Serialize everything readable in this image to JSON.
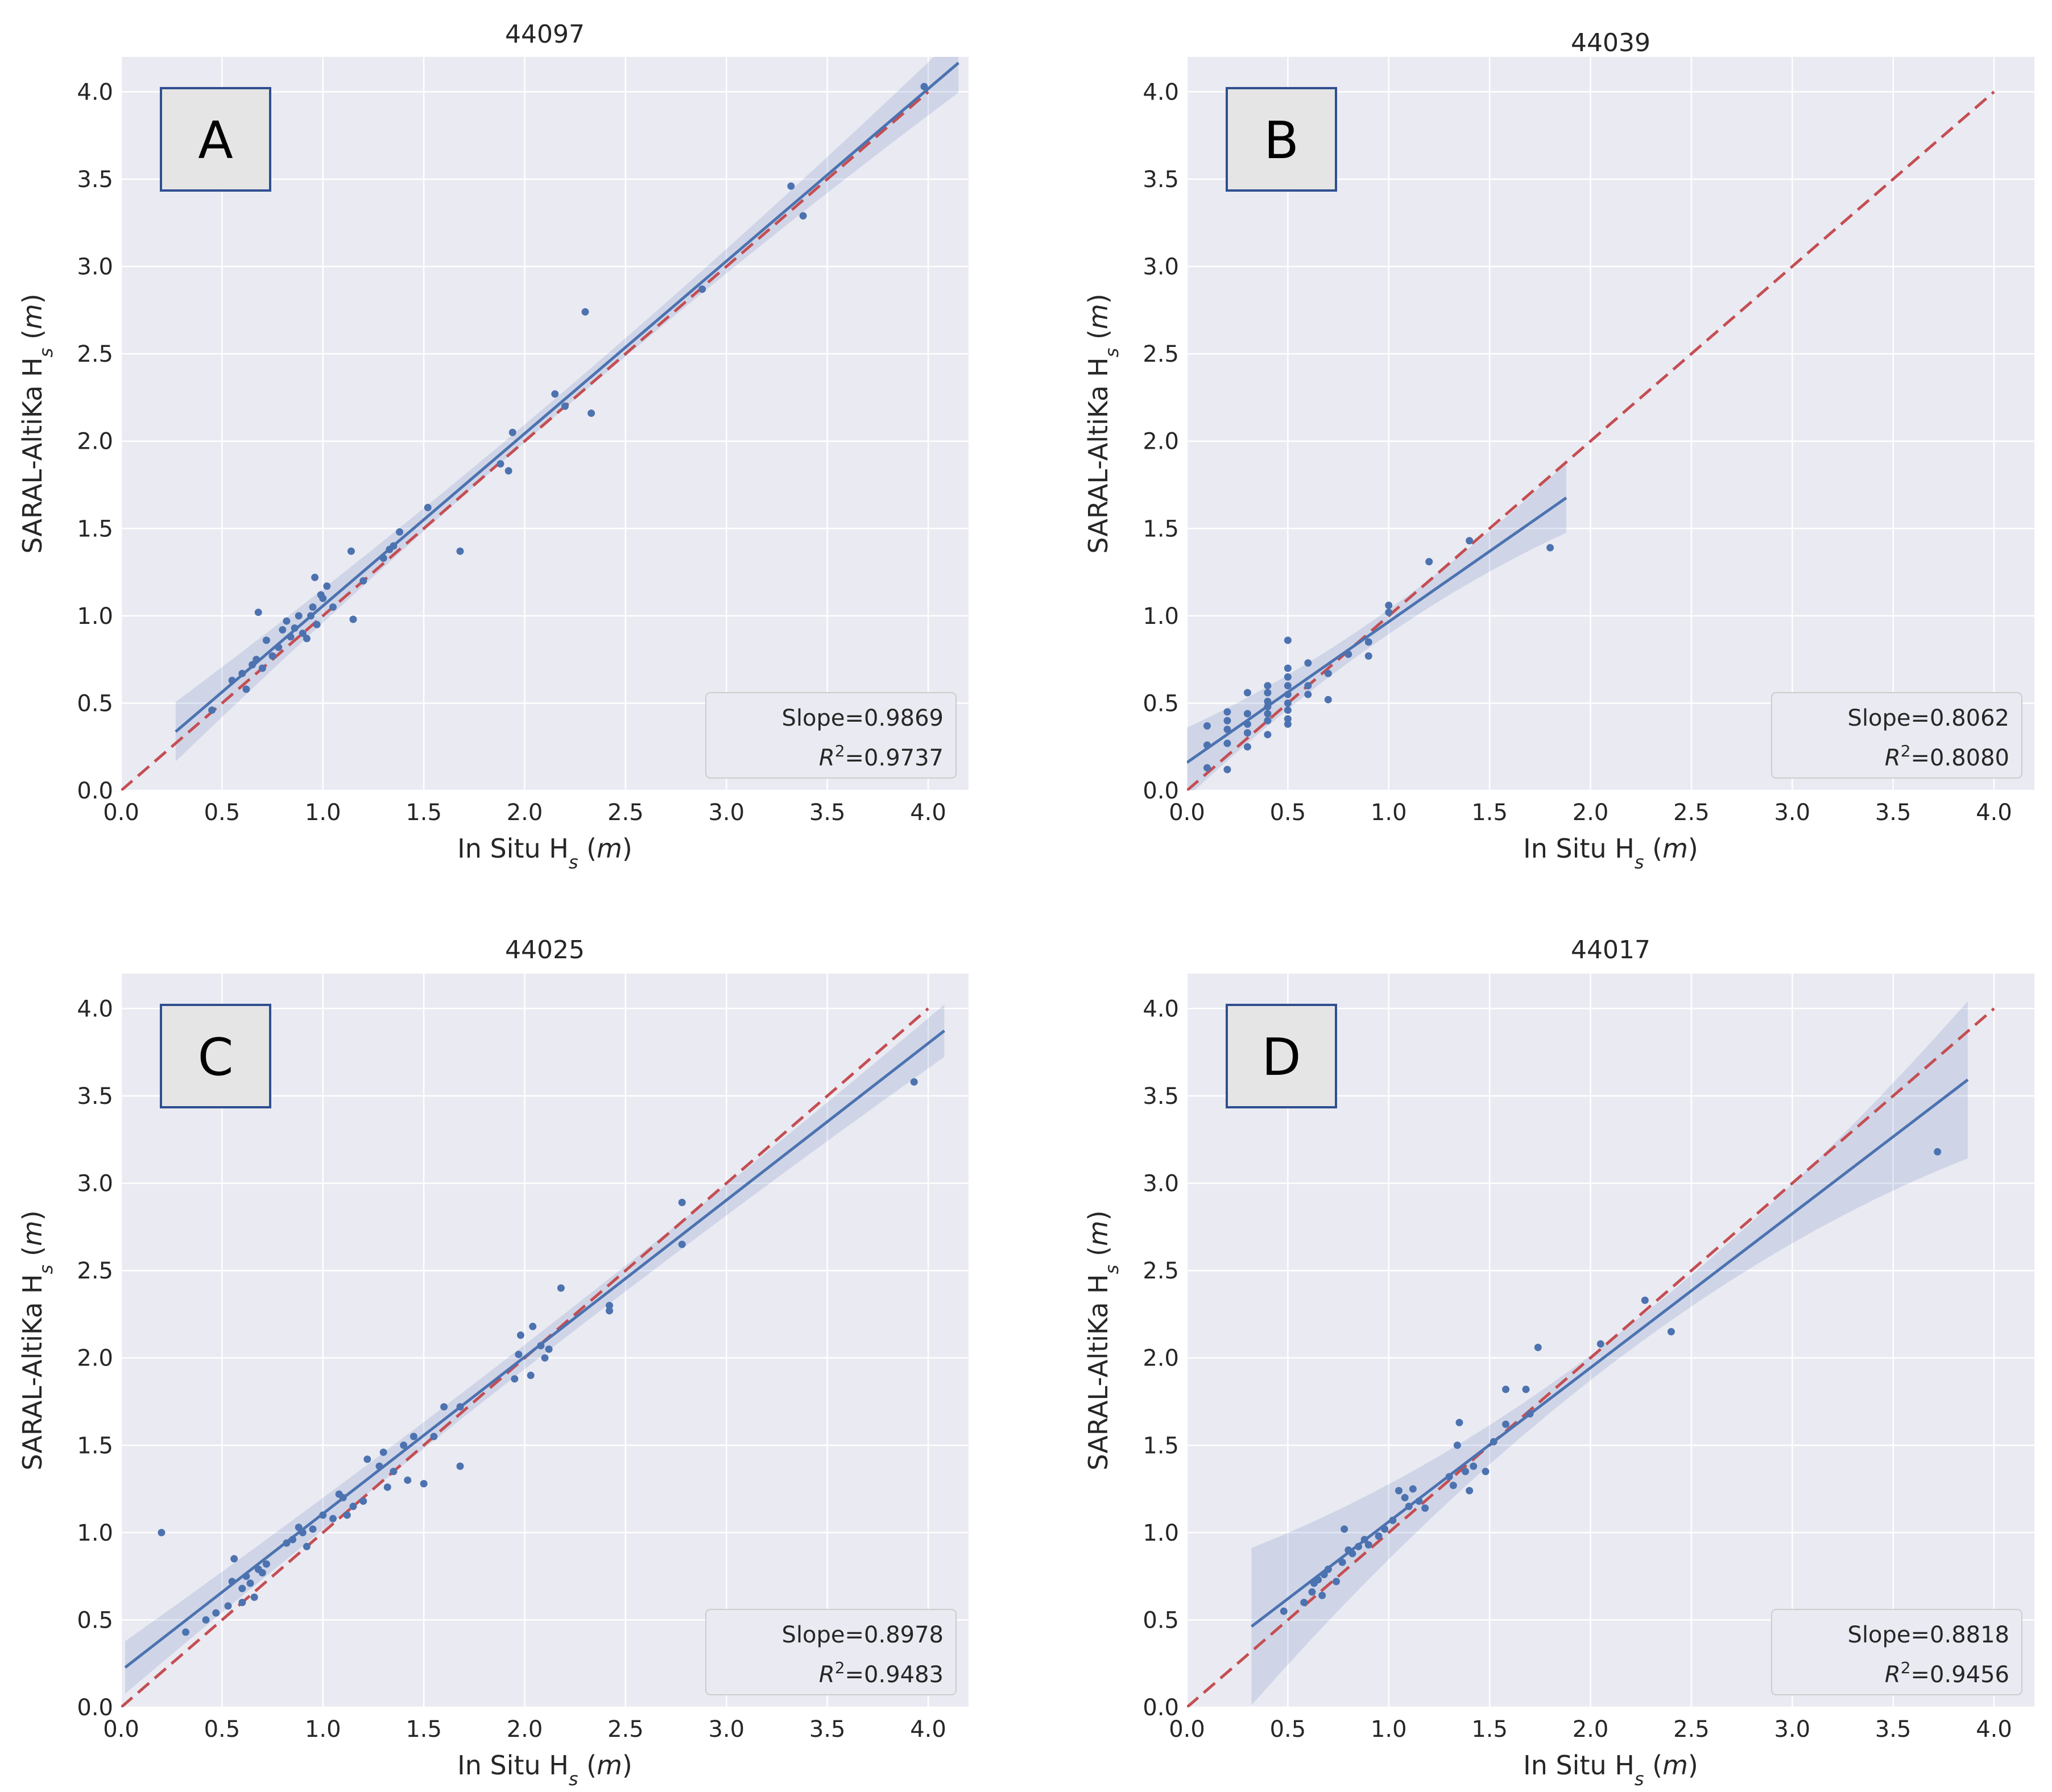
{
  "figure": {
    "colors": {
      "plot_bg": "#eaeaf2",
      "grid": "#ffffff",
      "points": "#4c72b0",
      "fit_line": "#4c72b0",
      "ci_band": "#4c72b0",
      "identity_line": "#c44e52",
      "label_box_fill": "#e5e5e5",
      "label_box_border": "#2f4f8f",
      "legend_fill": "#eaeaf2",
      "legend_border": "#cccccc"
    }
  },
  "chart_data": [
    {
      "type": "scatter",
      "panel_label": "A",
      "title": "44097",
      "xlabel": "In Situ H",
      "ylabel": "SARAL-AltiKa H",
      "label_subscript": "s",
      "label_unit_open": " (",
      "label_unit": "m",
      "label_unit_close": ")",
      "xlim": [
        0.0,
        4.2
      ],
      "ylim": [
        0.0,
        4.2
      ],
      "xticks": [
        "0.0",
        "0.5",
        "1.0",
        "1.5",
        "2.0",
        "2.5",
        "3.0",
        "3.5",
        "4.0"
      ],
      "yticks": [
        "0.0",
        "0.5",
        "1.0",
        "1.5",
        "2.0",
        "2.5",
        "3.0",
        "3.5",
        "4.0"
      ],
      "grid": true,
      "legend_position": "bottom-right",
      "slope_label": "Slope=0.9869",
      "r2_label": "=0.9737",
      "r2_symbol": "R",
      "r2_power": "2",
      "fit": {
        "slope": 0.9869,
        "intercept": 0.07,
        "x_range": [
          0.27,
          4.15
        ],
        "ci_half_width": [
          0.05,
          0.17
        ]
      },
      "identity": [
        0.0,
        4.0
      ],
      "points": [
        [
          0.45,
          0.46
        ],
        [
          0.55,
          0.63
        ],
        [
          0.6,
          0.67
        ],
        [
          0.62,
          0.58
        ],
        [
          0.65,
          0.72
        ],
        [
          0.67,
          0.75
        ],
        [
          0.68,
          1.02
        ],
        [
          0.7,
          0.7
        ],
        [
          0.72,
          0.86
        ],
        [
          0.75,
          0.77
        ],
        [
          0.78,
          0.82
        ],
        [
          0.8,
          0.92
        ],
        [
          0.82,
          0.97
        ],
        [
          0.84,
          0.88
        ],
        [
          0.86,
          0.93
        ],
        [
          0.88,
          1.0
        ],
        [
          0.9,
          0.9
        ],
        [
          0.92,
          0.87
        ],
        [
          0.94,
          1.0
        ],
        [
          0.95,
          1.05
        ],
        [
          0.96,
          1.22
        ],
        [
          0.97,
          0.95
        ],
        [
          0.99,
          1.12
        ],
        [
          1.0,
          1.1
        ],
        [
          1.02,
          1.17
        ],
        [
          1.05,
          1.05
        ],
        [
          1.14,
          1.37
        ],
        [
          1.15,
          0.98
        ],
        [
          1.2,
          1.2
        ],
        [
          1.3,
          1.33
        ],
        [
          1.33,
          1.38
        ],
        [
          1.35,
          1.4
        ],
        [
          1.38,
          1.48
        ],
        [
          1.52,
          1.62
        ],
        [
          1.68,
          1.37
        ],
        [
          1.88,
          1.87
        ],
        [
          1.92,
          1.83
        ],
        [
          1.94,
          2.05
        ],
        [
          2.15,
          2.27
        ],
        [
          2.2,
          2.2
        ],
        [
          2.3,
          2.74
        ],
        [
          2.33,
          2.16
        ],
        [
          2.88,
          2.87
        ],
        [
          3.32,
          3.46
        ],
        [
          3.38,
          3.29
        ],
        [
          3.98,
          4.03
        ]
      ]
    },
    {
      "type": "scatter",
      "panel_label": "B",
      "title": "44039",
      "xlabel": "In Situ H",
      "ylabel": "SARAL-AltiKa H",
      "label_subscript": "s",
      "label_unit_open": " (",
      "label_unit": "m",
      "label_unit_close": ")",
      "xlim": [
        0.0,
        4.2
      ],
      "ylim": [
        0.0,
        4.2
      ],
      "xticks": [
        "0.0",
        "0.5",
        "1.0",
        "1.5",
        "2.0",
        "2.5",
        "3.0",
        "3.5",
        "4.0"
      ],
      "yticks": [
        "0.0",
        "0.5",
        "1.0",
        "1.5",
        "2.0",
        "2.5",
        "3.0",
        "3.5",
        "4.0"
      ],
      "grid": true,
      "legend_position": "bottom-right",
      "slope_label": "Slope=0.8062",
      "r2_label": "=0.8080",
      "r2_symbol": "R",
      "r2_power": "2",
      "fit": {
        "slope": 0.8062,
        "intercept": 0.16,
        "x_range": [
          0.0,
          1.88
        ],
        "ci_half_width": [
          0.07,
          0.2
        ]
      },
      "identity": [
        0.0,
        4.0
      ],
      "points": [
        [
          0.1,
          0.13
        ],
        [
          0.1,
          0.26
        ],
        [
          0.1,
          0.37
        ],
        [
          0.2,
          0.12
        ],
        [
          0.2,
          0.27
        ],
        [
          0.2,
          0.35
        ],
        [
          0.2,
          0.4
        ],
        [
          0.2,
          0.45
        ],
        [
          0.3,
          0.25
        ],
        [
          0.3,
          0.33
        ],
        [
          0.3,
          0.38
        ],
        [
          0.3,
          0.44
        ],
        [
          0.3,
          0.56
        ],
        [
          0.4,
          0.32
        ],
        [
          0.4,
          0.4
        ],
        [
          0.4,
          0.44
        ],
        [
          0.4,
          0.48
        ],
        [
          0.4,
          0.51
        ],
        [
          0.4,
          0.56
        ],
        [
          0.4,
          0.6
        ],
        [
          0.5,
          0.38
        ],
        [
          0.5,
          0.41
        ],
        [
          0.5,
          0.46
        ],
        [
          0.5,
          0.5
        ],
        [
          0.5,
          0.55
        ],
        [
          0.5,
          0.6
        ],
        [
          0.5,
          0.65
        ],
        [
          0.5,
          0.7
        ],
        [
          0.5,
          0.86
        ],
        [
          0.6,
          0.55
        ],
        [
          0.6,
          0.6
        ],
        [
          0.6,
          0.73
        ],
        [
          0.7,
          0.52
        ],
        [
          0.7,
          0.67
        ],
        [
          0.8,
          0.78
        ],
        [
          0.9,
          0.77
        ],
        [
          0.9,
          0.85
        ],
        [
          1.0,
          1.02
        ],
        [
          1.0,
          1.06
        ],
        [
          1.2,
          1.31
        ],
        [
          1.4,
          1.43
        ],
        [
          1.8,
          1.39
        ]
      ]
    },
    {
      "type": "scatter",
      "panel_label": "C",
      "title": "44025",
      "xlabel": "In Situ H",
      "ylabel": "SARAL-AltiKa H",
      "label_subscript": "s",
      "label_unit_open": " (",
      "label_unit": "m",
      "label_unit_close": ")",
      "xlim": [
        0.0,
        4.2
      ],
      "ylim": [
        0.0,
        4.2
      ],
      "xticks": [
        "0.0",
        "0.5",
        "1.0",
        "1.5",
        "2.0",
        "2.5",
        "3.0",
        "3.5",
        "4.0"
      ],
      "yticks": [
        "0.0",
        "0.5",
        "1.0",
        "1.5",
        "2.0",
        "2.5",
        "3.0",
        "3.5",
        "4.0"
      ],
      "grid": true,
      "legend_position": "bottom-right",
      "slope_label": "Slope=0.8978",
      "r2_label": "=0.9483",
      "r2_symbol": "R",
      "r2_power": "2",
      "fit": {
        "slope": 0.8978,
        "intercept": 0.21,
        "x_range": [
          0.02,
          4.08
        ],
        "ci_half_width": [
          0.07,
          0.15
        ]
      },
      "identity": [
        0.0,
        4.0
      ],
      "points": [
        [
          0.2,
          1.0
        ],
        [
          0.32,
          0.43
        ],
        [
          0.42,
          0.5
        ],
        [
          0.47,
          0.54
        ],
        [
          0.53,
          0.58
        ],
        [
          0.55,
          0.72
        ],
        [
          0.56,
          0.85
        ],
        [
          0.6,
          0.6
        ],
        [
          0.6,
          0.68
        ],
        [
          0.62,
          0.75
        ],
        [
          0.64,
          0.71
        ],
        [
          0.66,
          0.63
        ],
        [
          0.68,
          0.79
        ],
        [
          0.7,
          0.77
        ],
        [
          0.72,
          0.82
        ],
        [
          0.82,
          0.94
        ],
        [
          0.85,
          0.96
        ],
        [
          0.88,
          1.03
        ],
        [
          0.9,
          1.0
        ],
        [
          0.92,
          0.92
        ],
        [
          0.95,
          1.02
        ],
        [
          1.0,
          1.1
        ],
        [
          1.05,
          1.08
        ],
        [
          1.08,
          1.22
        ],
        [
          1.1,
          1.2
        ],
        [
          1.12,
          1.1
        ],
        [
          1.15,
          1.15
        ],
        [
          1.2,
          1.18
        ],
        [
          1.22,
          1.42
        ],
        [
          1.28,
          1.38
        ],
        [
          1.3,
          1.46
        ],
        [
          1.32,
          1.26
        ],
        [
          1.35,
          1.35
        ],
        [
          1.4,
          1.5
        ],
        [
          1.42,
          1.3
        ],
        [
          1.45,
          1.55
        ],
        [
          1.5,
          1.28
        ],
        [
          1.55,
          1.55
        ],
        [
          1.6,
          1.72
        ],
        [
          1.68,
          1.72
        ],
        [
          1.68,
          1.38
        ],
        [
          1.95,
          1.88
        ],
        [
          1.97,
          2.02
        ],
        [
          1.98,
          2.13
        ],
        [
          2.03,
          1.9
        ],
        [
          2.04,
          2.18
        ],
        [
          2.08,
          2.07
        ],
        [
          2.1,
          2.0
        ],
        [
          2.12,
          2.05
        ],
        [
          2.18,
          2.4
        ],
        [
          2.42,
          2.3
        ],
        [
          2.42,
          2.27
        ],
        [
          2.78,
          2.89
        ],
        [
          2.78,
          2.65
        ],
        [
          3.93,
          3.58
        ]
      ]
    },
    {
      "type": "scatter",
      "panel_label": "D",
      "title": "44017",
      "xlabel": "In Situ H",
      "ylabel": "SARAL-AltiKa H",
      "label_subscript": "s",
      "label_unit_open": " (",
      "label_unit": "m",
      "label_unit_close": ")",
      "xlim": [
        0.0,
        4.2
      ],
      "ylim": [
        0.0,
        4.2
      ],
      "xticks": [
        "0.0",
        "0.5",
        "1.0",
        "1.5",
        "2.0",
        "2.5",
        "3.0",
        "3.5",
        "4.0"
      ],
      "yticks": [
        "0.0",
        "0.5",
        "1.0",
        "1.5",
        "2.0",
        "2.5",
        "3.0",
        "3.5",
        "4.0"
      ],
      "grid": true,
      "legend_position": "bottom-right",
      "slope_label": "Slope=0.8818",
      "r2_label": "=0.9456",
      "r2_symbol": "R",
      "r2_power": "2",
      "fit": {
        "slope": 0.8818,
        "intercept": 0.18,
        "x_range": [
          0.32,
          3.87
        ],
        "ci_half_width": [
          0.07,
          0.45
        ]
      },
      "identity": [
        0.0,
        4.0
      ],
      "points": [
        [
          0.48,
          0.55
        ],
        [
          0.58,
          0.6
        ],
        [
          0.62,
          0.66
        ],
        [
          0.63,
          0.71
        ],
        [
          0.65,
          0.73
        ],
        [
          0.67,
          0.64
        ],
        [
          0.68,
          0.76
        ],
        [
          0.7,
          0.79
        ],
        [
          0.74,
          0.72
        ],
        [
          0.77,
          0.83
        ],
        [
          0.78,
          1.02
        ],
        [
          0.8,
          0.9
        ],
        [
          0.82,
          0.88
        ],
        [
          0.85,
          0.92
        ],
        [
          0.88,
          0.96
        ],
        [
          0.9,
          0.93
        ],
        [
          0.95,
          0.98
        ],
        [
          0.98,
          1.02
        ],
        [
          1.02,
          1.07
        ],
        [
          1.05,
          1.24
        ],
        [
          1.08,
          1.2
        ],
        [
          1.1,
          1.15
        ],
        [
          1.12,
          1.25
        ],
        [
          1.15,
          1.18
        ],
        [
          1.18,
          1.14
        ],
        [
          1.3,
          1.32
        ],
        [
          1.32,
          1.27
        ],
        [
          1.34,
          1.5
        ],
        [
          1.35,
          1.63
        ],
        [
          1.38,
          1.35
        ],
        [
          1.4,
          1.24
        ],
        [
          1.42,
          1.38
        ],
        [
          1.48,
          1.35
        ],
        [
          1.52,
          1.52
        ],
        [
          1.58,
          1.62
        ],
        [
          1.58,
          1.82
        ],
        [
          1.68,
          1.82
        ],
        [
          1.7,
          1.68
        ],
        [
          1.74,
          2.06
        ],
        [
          2.05,
          2.08
        ],
        [
          2.27,
          2.33
        ],
        [
          2.4,
          2.15
        ],
        [
          3.72,
          3.18
        ]
      ]
    }
  ]
}
